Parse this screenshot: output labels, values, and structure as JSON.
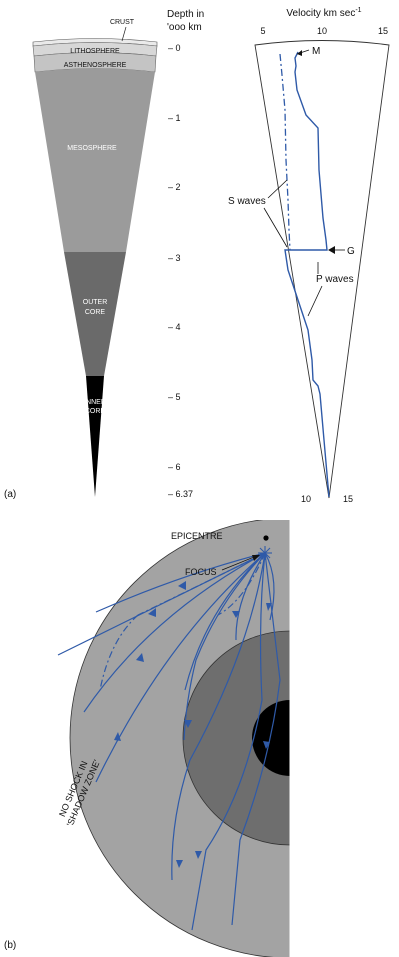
{
  "part_a": {
    "panel_label": "(a)",
    "layers": {
      "crust": "CRUST",
      "lithosphere": "LITHOSPHERE",
      "asthenosphere": "ASTHENOSPHERE",
      "mesosphere": "MESOSPHERE",
      "outer_core": [
        "OUTER",
        "CORE"
      ],
      "inner_core": [
        "INNER",
        "CORE"
      ]
    },
    "depth_axis": {
      "title_line1": "Depth in",
      "title_line2": "'ooo km",
      "ticks": [
        "– 0",
        "– 1",
        "– 2",
        "– 3",
        "– 4",
        "– 5",
        "– 6",
        "– 6.37"
      ]
    },
    "velocity_axis": {
      "title": "Velocity km sec",
      "title_superscript": "-1",
      "top_ticks": [
        "5",
        "10",
        "15"
      ],
      "bottom_ticks": [
        "10",
        "15"
      ]
    },
    "annotations": {
      "m": "M",
      "g": "G",
      "s_waves": "S waves",
      "p_waves": "P waves"
    }
  },
  "part_b": {
    "panel_label": "(b)",
    "epicentre": "EPICENTRE",
    "focus": "FOCUS",
    "shadow_zone_line1": "NO SHOCK IN",
    "shadow_zone_line2": "'SHADOW ZONE'"
  },
  "colors": {
    "crust": "#eaeaea",
    "lithosphere": "#d7d7d7",
    "asthenosphere": "#c4c4c4",
    "mesosphere": "#9b9b9b",
    "outer_core": "#6a6a6a",
    "inner_core": "#000000",
    "mantle_b": "#a3a3a3",
    "outer_core_b": "#6e6e6e",
    "wave_line": "#2f5aa8"
  }
}
